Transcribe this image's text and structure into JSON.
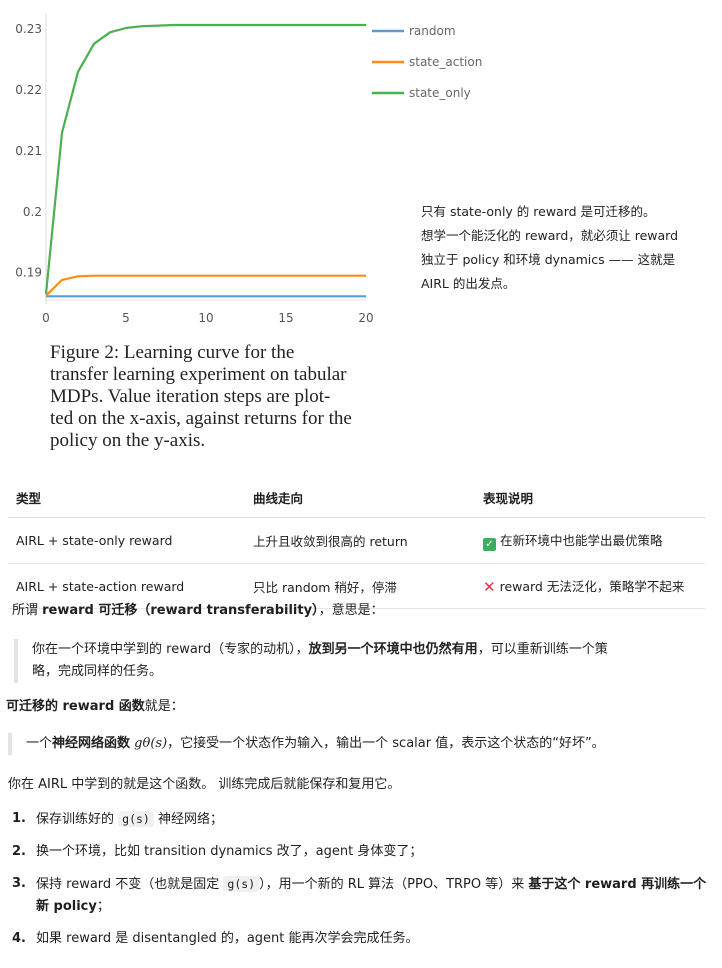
{
  "chart_data": {
    "type": "line",
    "x_ticks": [
      "0",
      "5",
      "10",
      "15",
      "20"
    ],
    "y_ticks": [
      "0.19",
      "0.2",
      "0.21",
      "0.22",
      "0.23"
    ],
    "xlim": [
      0,
      20
    ],
    "ylim": [
      0.1855,
      0.2325
    ],
    "grid": false,
    "legend": "right",
    "series": [
      {
        "name": "random",
        "color": "#5b9bd5",
        "x": [
          0,
          1,
          2,
          3,
          4,
          5,
          6,
          7,
          8,
          9,
          10,
          11,
          12,
          13,
          14,
          15,
          16,
          17,
          18,
          19,
          20
        ],
        "y": [
          0.1861,
          0.1861,
          0.1861,
          0.1861,
          0.1861,
          0.1861,
          0.1861,
          0.1861,
          0.1861,
          0.1861,
          0.1861,
          0.1861,
          0.1861,
          0.1861,
          0.1861,
          0.1861,
          0.1861,
          0.1861,
          0.1861,
          0.1861,
          0.1861
        ]
      },
      {
        "name": "state_action",
        "color": "#ff8c1a",
        "x": [
          0,
          1,
          2,
          3,
          4,
          5,
          6,
          7,
          8,
          9,
          10,
          11,
          12,
          13,
          14,
          15,
          16,
          17,
          18,
          19,
          20
        ],
        "y": [
          0.1862,
          0.1888,
          0.1894,
          0.1895,
          0.1895,
          0.1895,
          0.1895,
          0.1895,
          0.1895,
          0.1895,
          0.1895,
          0.1895,
          0.1895,
          0.1895,
          0.1895,
          0.1895,
          0.1895,
          0.1895,
          0.1895,
          0.1895,
          0.1895
        ]
      },
      {
        "name": "state_only",
        "color": "#4caf50",
        "x": [
          0,
          1,
          2,
          3,
          4,
          5,
          6,
          7,
          8,
          9,
          10,
          11,
          12,
          13,
          14,
          15,
          16,
          17,
          18,
          19,
          20
        ],
        "y": [
          0.1865,
          0.213,
          0.223,
          0.2276,
          0.2295,
          0.2302,
          0.2305,
          0.2306,
          0.2307,
          0.2307,
          0.2307,
          0.2307,
          0.2307,
          0.2307,
          0.2307,
          0.2307,
          0.2307,
          0.2307,
          0.2307,
          0.2307,
          0.2307
        ]
      }
    ]
  },
  "caption": {
    "lines": [
      "Figure 2:    Learning curve for the",
      "transfer learning experiment on tabular",
      "MDPs.  Value iteration steps are plot-",
      "ted on the x-axis, against returns for the",
      "policy on the y-axis."
    ]
  },
  "note": {
    "lines": [
      "只有 state-only 的 reward 是可迁移的。",
      "想学一个能泛化的 reward，就必须让 reward",
      "独立于 policy 和环境 dynamics —— 这就是",
      "AIRL 的出发点。"
    ]
  },
  "table": {
    "headers": [
      "类型",
      "曲线走向",
      "表现说明"
    ],
    "rows": [
      {
        "type": "AIRL + state-only reward",
        "trend": "上升且收敛到很高的 return",
        "icon": "check-icon",
        "desc": "在新环境中也能学出最优策略"
      },
      {
        "type": "AIRL + state-action reward",
        "trend": "只比 random 稍好，停滞",
        "icon": "cross-icon",
        "desc": "reward 无法泛化，策略学不起来"
      }
    ]
  },
  "p1": {
    "pre": "所谓 ",
    "bold": "reward 可迁移（reward transferability）",
    "post": "，意思是："
  },
  "q1": {
    "pre": "你在一个环境中学到的 reward（专家的动机），",
    "bold": "放到另一个环境中也仍然有用",
    "post": "，可以重新训练一个策",
    "line2": "略，完成同样的任务。"
  },
  "p2": {
    "bold": "可迁移的 reward 函数",
    "post": "就是："
  },
  "q2": {
    "pre": "一个",
    "bold": "神经网络函数",
    "math": "gθ(s)",
    "post": "，它接受一个状态作为输入，输出一个 scalar 值，表示这个状态的“好坏”。"
  },
  "p3": {
    "text": "你在 AIRL 中学到的就是这个函数。 训练完成后就能保存和复用它。"
  },
  "steps": [
    {
      "num": "1.",
      "pre": "保存训练好的 ",
      "code": "g(s)",
      "post": " 神经网络；"
    },
    {
      "num": "2.",
      "pre": "换一个环境，比如 transition dynamics 改了，agent 身体变了；"
    },
    {
      "num": "3.",
      "pre": "保持 reward 不变（也就是固定 ",
      "code": "g(s)",
      "post": "），用一个新的 RL 算法（PPO、TRPO 等）来 ",
      "bold": "基于这个 reward 再训练一个新 policy",
      "tail": "；"
    },
    {
      "num": "4.",
      "pre": "如果 reward 是 disentangled 的，agent 能再次学会完成任务。"
    }
  ]
}
